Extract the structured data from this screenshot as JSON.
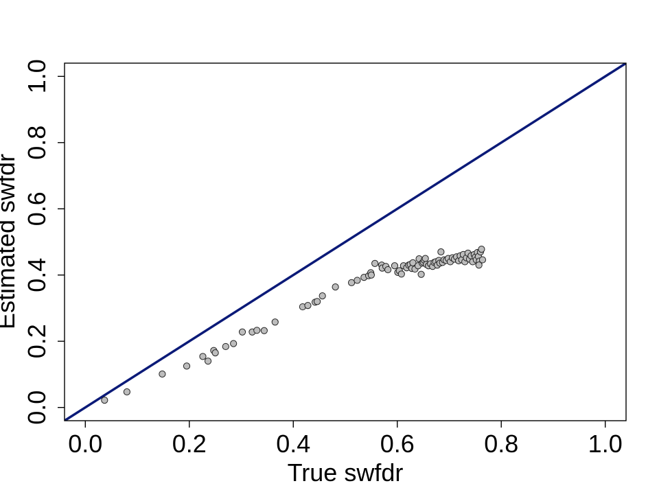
{
  "chart_data": {
    "type": "scatter",
    "title": "",
    "xlabel": "True swfdr",
    "ylabel": "Estimated swfdr",
    "xlim": [
      -0.04,
      1.04
    ],
    "ylim": [
      -0.04,
      1.04
    ],
    "x_ticks": [
      "0.0",
      "0.2",
      "0.4",
      "0.6",
      "0.8",
      "1.0"
    ],
    "y_ticks": [
      "0.0",
      "0.2",
      "0.4",
      "0.6",
      "0.8",
      "1.0"
    ],
    "grid": false,
    "legend": "none",
    "reference_line": {
      "slope": 1,
      "intercept": 0,
      "color": "#0b1a78"
    },
    "point_color": "#bdbdbd",
    "point_edge_color": "#222222",
    "points": [
      [
        0.037,
        0.022
      ],
      [
        0.08,
        0.047
      ],
      [
        0.148,
        0.101
      ],
      [
        0.195,
        0.125
      ],
      [
        0.226,
        0.154
      ],
      [
        0.236,
        0.14
      ],
      [
        0.247,
        0.172
      ],
      [
        0.25,
        0.165
      ],
      [
        0.27,
        0.184
      ],
      [
        0.285,
        0.193
      ],
      [
        0.302,
        0.228
      ],
      [
        0.321,
        0.228
      ],
      [
        0.33,
        0.233
      ],
      [
        0.344,
        0.232
      ],
      [
        0.365,
        0.258
      ],
      [
        0.418,
        0.304
      ],
      [
        0.428,
        0.308
      ],
      [
        0.442,
        0.318
      ],
      [
        0.446,
        0.32
      ],
      [
        0.456,
        0.337
      ],
      [
        0.481,
        0.364
      ],
      [
        0.512,
        0.377
      ],
      [
        0.523,
        0.384
      ],
      [
        0.536,
        0.393
      ],
      [
        0.545,
        0.398
      ],
      [
        0.549,
        0.407
      ],
      [
        0.55,
        0.4
      ],
      [
        0.557,
        0.435
      ],
      [
        0.57,
        0.43
      ],
      [
        0.571,
        0.421
      ],
      [
        0.578,
        0.426
      ],
      [
        0.582,
        0.416
      ],
      [
        0.595,
        0.428
      ],
      [
        0.601,
        0.408
      ],
      [
        0.604,
        0.413
      ],
      [
        0.608,
        0.403
      ],
      [
        0.612,
        0.428
      ],
      [
        0.618,
        0.422
      ],
      [
        0.622,
        0.43
      ],
      [
        0.625,
        0.432
      ],
      [
        0.628,
        0.42
      ],
      [
        0.63,
        0.437
      ],
      [
        0.634,
        0.418
      ],
      [
        0.64,
        0.428
      ],
      [
        0.642,
        0.449
      ],
      [
        0.646,
        0.402
      ],
      [
        0.648,
        0.436
      ],
      [
        0.65,
        0.439
      ],
      [
        0.652,
        0.445
      ],
      [
        0.654,
        0.45
      ],
      [
        0.656,
        0.432
      ],
      [
        0.66,
        0.428
      ],
      [
        0.664,
        0.434
      ],
      [
        0.668,
        0.426
      ],
      [
        0.671,
        0.438
      ],
      [
        0.674,
        0.44
      ],
      [
        0.677,
        0.43
      ],
      [
        0.68,
        0.444
      ],
      [
        0.682,
        0.436
      ],
      [
        0.684,
        0.47
      ],
      [
        0.687,
        0.438
      ],
      [
        0.69,
        0.446
      ],
      [
        0.694,
        0.444
      ],
      [
        0.698,
        0.45
      ],
      [
        0.702,
        0.44
      ],
      [
        0.706,
        0.452
      ],
      [
        0.71,
        0.448
      ],
      [
        0.714,
        0.455
      ],
      [
        0.718,
        0.443
      ],
      [
        0.721,
        0.458
      ],
      [
        0.724,
        0.446
      ],
      [
        0.727,
        0.462
      ],
      [
        0.73,
        0.44
      ],
      [
        0.733,
        0.452
      ],
      [
        0.736,
        0.466
      ],
      [
        0.739,
        0.448
      ],
      [
        0.742,
        0.458
      ],
      [
        0.745,
        0.44
      ],
      [
        0.748,
        0.462
      ],
      [
        0.75,
        0.454
      ],
      [
        0.752,
        0.446
      ],
      [
        0.754,
        0.468
      ],
      [
        0.756,
        0.456
      ],
      [
        0.758,
        0.442
      ],
      [
        0.76,
        0.47
      ],
      [
        0.762,
        0.478
      ],
      [
        0.764,
        0.446
      ],
      [
        0.757,
        0.43
      ]
    ]
  }
}
